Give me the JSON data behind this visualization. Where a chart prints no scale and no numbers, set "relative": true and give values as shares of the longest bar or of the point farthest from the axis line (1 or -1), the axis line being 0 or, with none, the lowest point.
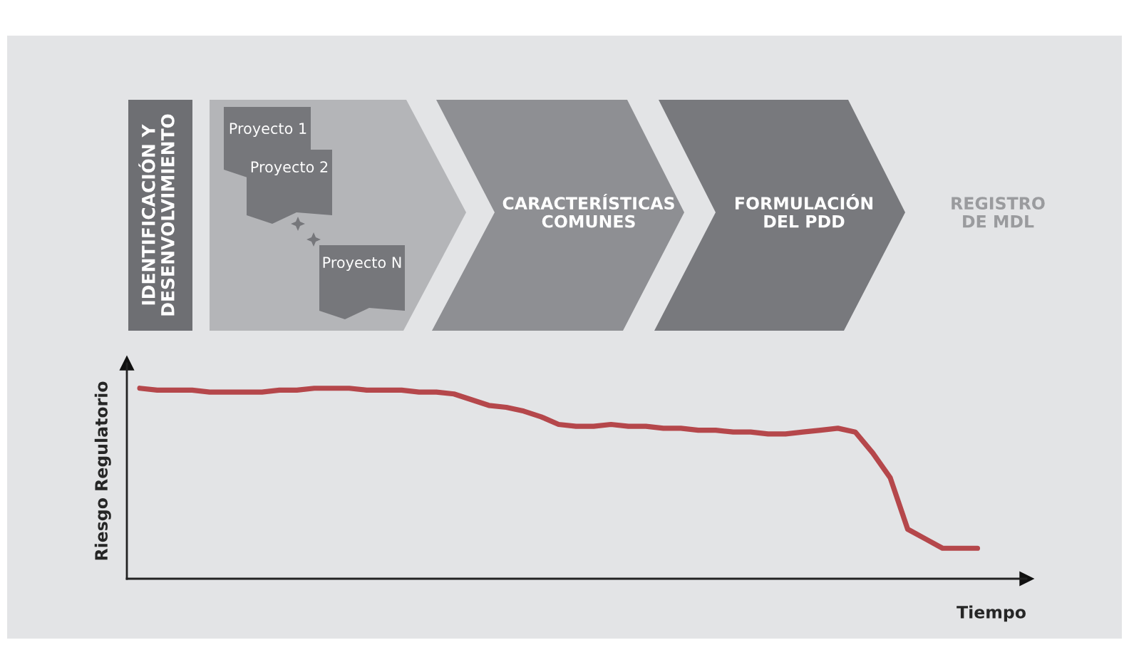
{
  "chart_data": {
    "type": "line",
    "relative": true,
    "xlabel": "Tiempo",
    "ylabel": "Riesgo Regulatorio",
    "categories": [
      null,
      null,
      null,
      null,
      null,
      null,
      null,
      null,
      null,
      null,
      null,
      null,
      null,
      null,
      null,
      null,
      null,
      null,
      null,
      null,
      null,
      null,
      null,
      null,
      null,
      null,
      null,
      null,
      null,
      null,
      null,
      null,
      null,
      null,
      null,
      null,
      null,
      null,
      null,
      null,
      null,
      null,
      null,
      null,
      null,
      null,
      null,
      null,
      null
    ],
    "series": [
      {
        "color": "#b5474b",
        "values": [
          1.0,
          0.99,
          0.99,
          0.99,
          0.98,
          0.98,
          0.98,
          0.98,
          0.99,
          0.99,
          1.0,
          1.0,
          1.0,
          0.99,
          0.99,
          0.99,
          0.98,
          0.98,
          0.97,
          0.94,
          0.91,
          0.9,
          0.88,
          0.85,
          0.81,
          0.8,
          0.8,
          0.81,
          0.8,
          0.8,
          0.79,
          0.79,
          0.78,
          0.78,
          0.77,
          0.77,
          0.76,
          0.76,
          0.77,
          0.78,
          0.79,
          0.77,
          0.66,
          0.53,
          0.26,
          0.21,
          0.16,
          0.16,
          0.16
        ]
      }
    ],
    "annotations": [
      "IDENTIFICACIÓN Y\nDESENVOLVIMIENTO",
      "Proyecto 1",
      "Proyecto 2",
      "Proyecto N",
      "CARACTERÍSTICAS\nCOMUNES",
      "FORMULACIÓN\nDEL PDD",
      "REGISTRO\nDE MDL"
    ],
    "grid": false,
    "legend": false
  }
}
